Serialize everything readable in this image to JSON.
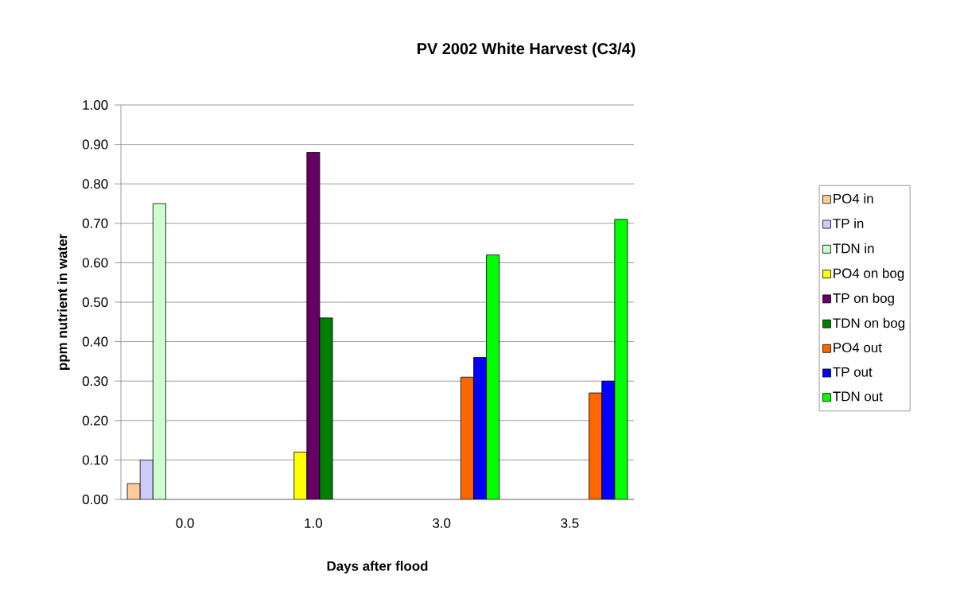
{
  "chart_data": {
    "type": "bar",
    "title": "PV 2002 White Harvest (C3/4)",
    "xlabel": "Days after flood",
    "ylabel": "ppm nutrient in water",
    "categories": [
      "0.0",
      "1.0",
      "3.0",
      "3.5"
    ],
    "series": [
      {
        "name": "PO4 in",
        "color": "#ffcc99",
        "values": [
          0.04,
          null,
          null,
          null
        ]
      },
      {
        "name": "TP in",
        "color": "#ccccff",
        "values": [
          0.1,
          null,
          null,
          null
        ]
      },
      {
        "name": "TDN in",
        "color": "#ccffcc",
        "values": [
          0.75,
          null,
          null,
          null
        ]
      },
      {
        "name": "PO4 on bog",
        "color": "#ffff00",
        "values": [
          null,
          0.12,
          null,
          null
        ]
      },
      {
        "name": "TP on bog",
        "color": "#660066",
        "values": [
          null,
          0.88,
          null,
          null
        ]
      },
      {
        "name": "TDN on bog",
        "color": "#008000",
        "values": [
          null,
          0.46,
          null,
          null
        ]
      },
      {
        "name": "PO4 out",
        "color": "#ff6600",
        "values": [
          null,
          null,
          0.31,
          0.27
        ]
      },
      {
        "name": "TP out",
        "color": "#0000ff",
        "values": [
          null,
          null,
          0.36,
          0.3
        ]
      },
      {
        "name": "TDN out",
        "color": "#00ff00",
        "values": [
          null,
          null,
          0.62,
          0.71
        ]
      }
    ],
    "ylim": [
      0,
      1
    ],
    "yticks": [
      {
        "value": 0,
        "label": "0.00"
      },
      {
        "value": 0.1,
        "label": "0.10"
      },
      {
        "value": 0.2,
        "label": "0.20"
      },
      {
        "value": 0.3,
        "label": "0.30"
      },
      {
        "value": 0.4,
        "label": "0.40"
      },
      {
        "value": 0.5,
        "label": "0.50"
      },
      {
        "value": 0.6,
        "label": "0.60"
      },
      {
        "value": 0.7,
        "label": "0.70"
      },
      {
        "value": 0.8,
        "label": "0.80"
      },
      {
        "value": 0.9,
        "label": "0.90"
      },
      {
        "value": 1,
        "label": "1.00"
      }
    ],
    "grid": "y",
    "legend": "right"
  }
}
